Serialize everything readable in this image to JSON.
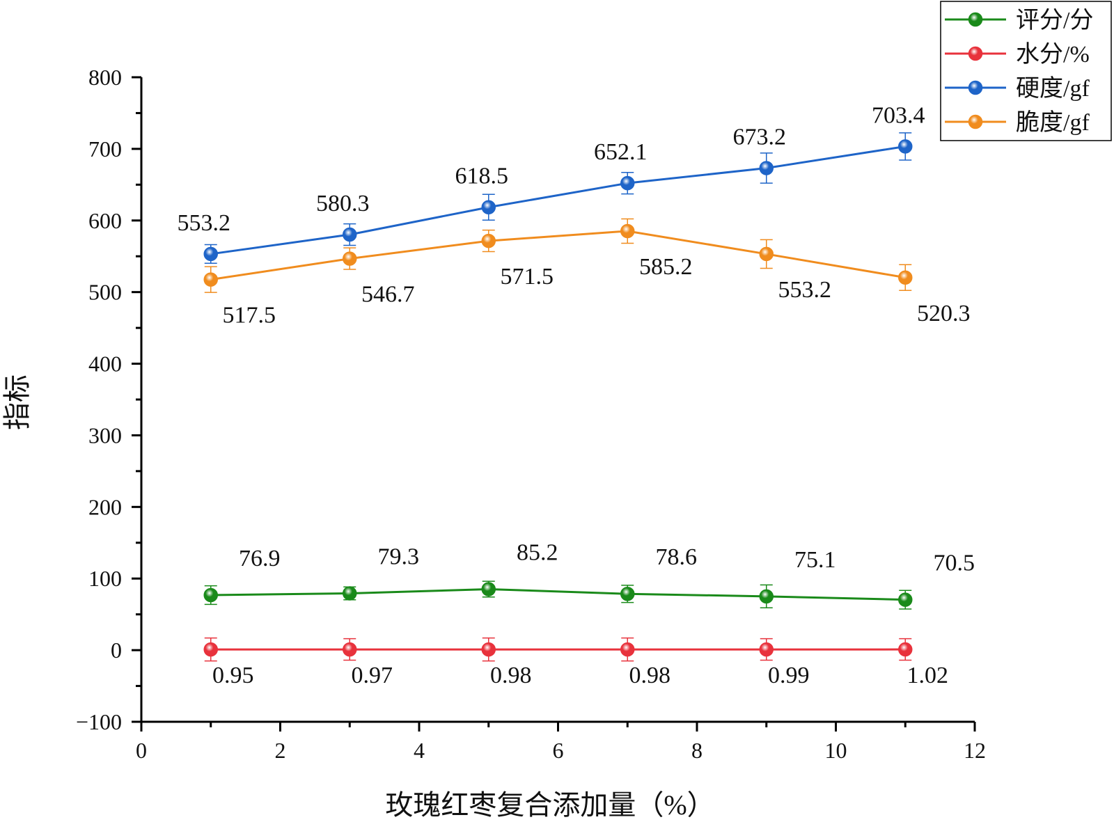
{
  "chart_data": {
    "type": "line",
    "xlabel": "玫瑰红枣复合添加量（%）",
    "ylabel": "指标",
    "xlim": [
      0,
      12
    ],
    "ylim": [
      -100,
      800
    ],
    "xticks": [
      0,
      2,
      4,
      6,
      8,
      10,
      12
    ],
    "yticks": [
      -100,
      0,
      100,
      200,
      300,
      400,
      500,
      600,
      700,
      800
    ],
    "xtick_labels": [
      "0",
      "2",
      "4",
      "6",
      "8",
      "10",
      "12"
    ],
    "ytick_labels": [
      "−100",
      "0",
      "100",
      "200",
      "300",
      "400",
      "500",
      "600",
      "700",
      "800"
    ],
    "x": [
      1,
      3,
      5,
      7,
      9,
      11
    ],
    "grid": false,
    "legend_position": "top-right",
    "series": [
      {
        "name": "评分/分",
        "color": "#1a8a1a",
        "values": [
          76.9,
          79.3,
          85.2,
          78.6,
          75.1,
          70.5
        ],
        "errors": [
          13,
          9,
          11,
          12,
          16,
          13
        ],
        "labels": [
          "76.9",
          "79.3",
          "85.2",
          "78.6",
          "75.1",
          "70.5"
        ],
        "label_side": "upper-right"
      },
      {
        "name": "水分/%",
        "color": "#e8323c",
        "values": [
          0.95,
          0.97,
          0.98,
          0.98,
          0.99,
          1.02
        ],
        "errors": [
          16,
          15,
          16,
          16,
          15,
          15
        ],
        "labels": [
          "0.95",
          "0.97",
          "0.98",
          "0.98",
          "0.99",
          "1.02"
        ],
        "label_side": "below-right"
      },
      {
        "name": "硬度/gf",
        "color": "#1e64c8",
        "values": [
          553.2,
          580.3,
          618.5,
          652.1,
          673.2,
          703.4
        ],
        "errors": [
          13,
          15,
          18,
          15,
          21,
          19
        ],
        "labels": [
          "553.2",
          "580.3",
          "618.5",
          "652.1",
          "673.2",
          "703.4"
        ],
        "label_side": "above-left"
      },
      {
        "name": "脆度/gf",
        "color": "#f08c1e",
        "values": [
          517.5,
          546.7,
          571.5,
          585.2,
          553.2,
          520.3
        ],
        "errors": [
          18,
          15,
          15,
          17,
          20,
          18
        ],
        "labels": [
          "517.5",
          "546.7",
          "571.5",
          "585.2",
          "553.2",
          "520.3"
        ],
        "label_side": "below-right"
      }
    ]
  }
}
